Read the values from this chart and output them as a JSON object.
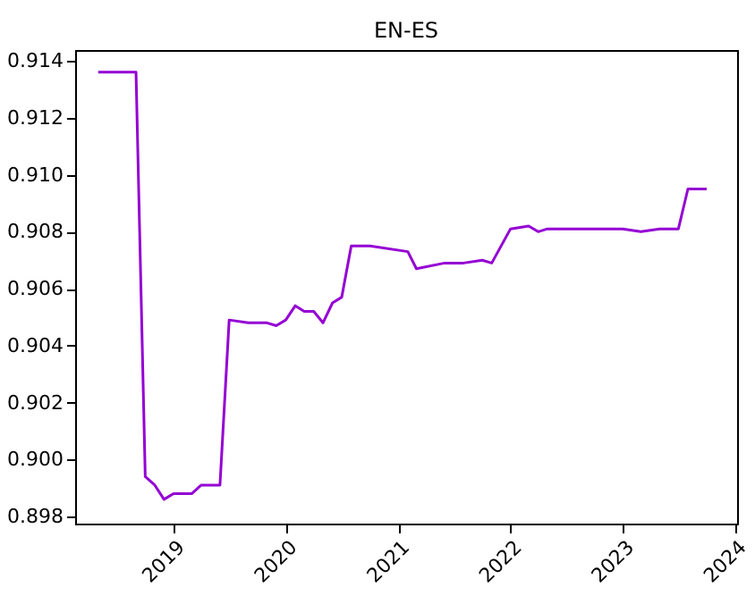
{
  "chart_data": {
    "type": "line",
    "title": "EN-ES",
    "x": [
      "2018-05",
      "2018-09",
      "2018-10",
      "2018-11",
      "2018-12",
      "2019-01",
      "2019-02",
      "2019-03",
      "2019-04",
      "2019-06",
      "2019-07",
      "2019-09",
      "2019-11",
      "2019-12",
      "2020-01",
      "2020-02",
      "2020-03",
      "2020-04",
      "2020-05",
      "2020-06",
      "2020-07",
      "2020-08",
      "2020-09",
      "2020-10",
      "2021-02",
      "2021-03",
      "2021-06",
      "2021-08",
      "2021-10",
      "2021-11",
      "2022-01",
      "2022-03",
      "2022-04",
      "2022-05",
      "2022-08",
      "2022-09",
      "2022-11",
      "2022-12",
      "2023-01",
      "2023-03",
      "2023-05",
      "2023-06",
      "2023-07",
      "2023-08",
      "2023-10"
    ],
    "series": [
      {
        "color": "#9400d3",
        "values": [
          0.9136,
          0.9136,
          0.8994,
          0.8991,
          0.8986,
          0.8988,
          0.8988,
          0.8988,
          0.8991,
          0.8991,
          0.9049,
          0.9048,
          0.9048,
          0.9047,
          0.9049,
          0.9054,
          0.9052,
          0.9052,
          0.9048,
          0.9055,
          0.9057,
          0.9075,
          0.9075,
          0.9075,
          0.9073,
          0.9067,
          0.9069,
          0.9069,
          0.907,
          0.9069,
          0.9081,
          0.9082,
          0.908,
          0.9081,
          0.9081,
          0.9081,
          0.9081,
          0.9081,
          0.9081,
          0.908,
          0.9081,
          0.9081,
          0.9081,
          0.9095,
          0.9095
        ]
      }
    ],
    "xlim": [
      "2018-02-15",
      "2024-01-08"
    ],
    "xticks": [
      "2019",
      "2020",
      "2021",
      "2022",
      "2023",
      "2024"
    ],
    "ylim": [
      0.89775,
      0.91438
    ],
    "yticks": [
      0.898,
      {
        "value": 0.9,
        "label": "0.900"
      },
      0.902,
      0.904,
      0.906,
      0.908,
      {
        "value": 0.91,
        "label": "0.910"
      },
      0.912,
      0.914
    ],
    "grid": false,
    "marker": "none",
    "line_style": "solid"
  }
}
